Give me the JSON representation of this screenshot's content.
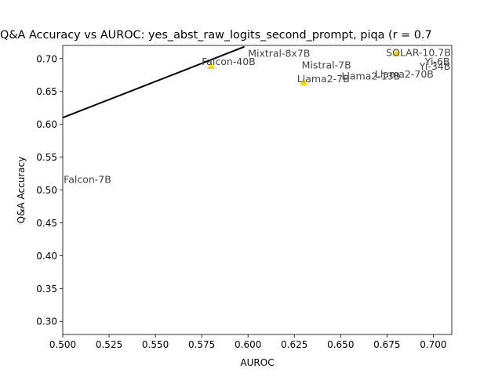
{
  "chart_data": {
    "type": "scatter",
    "title": "Q&A Accuracy vs AUROC: yes_abst_raw_logits_second_prompt, piqa (r = 0.7",
    "xlabel": "AUROC",
    "ylabel": "Q&A Accuracy",
    "xlim": [
      0.5,
      0.71
    ],
    "ylim": [
      0.28,
      0.72
    ],
    "x_ticks": [
      0.5,
      0.525,
      0.55,
      0.575,
      0.6,
      0.625,
      0.65,
      0.675,
      0.7
    ],
    "x_tick_labels": [
      "0.500",
      "0.525",
      "0.550",
      "0.575",
      "0.600",
      "0.625",
      "0.650",
      "0.675",
      "0.700"
    ],
    "y_ticks": [
      0.3,
      0.35,
      0.4,
      0.45,
      0.5,
      0.55,
      0.6,
      0.65,
      0.7
    ],
    "y_tick_labels": [
      "0.30",
      "0.35",
      "0.40",
      "0.45",
      "0.50",
      "0.55",
      "0.60",
      "0.65",
      "0.70"
    ],
    "grid": false,
    "marker_color": "#FFD700",
    "line_color": "#000000",
    "regression_line": {
      "x": [
        0.5,
        0.598
      ],
      "y": [
        0.61,
        0.718
      ]
    },
    "points": [
      {
        "label": "Falcon-40B",
        "x": 0.58,
        "y": 0.689,
        "marker": true
      },
      {
        "label": "Llama2-7B",
        "x": 0.63,
        "y": 0.664,
        "marker": true
      },
      {
        "label": "SOLAR-10.7B",
        "x": 0.68,
        "y": 0.708,
        "marker": true
      }
    ],
    "labels": [
      {
        "text": "Mixtral-8x7B",
        "x": 0.6,
        "y": 0.703
      },
      {
        "text": "Falcon-40B",
        "x": 0.575,
        "y": 0.69
      },
      {
        "text": "Mistral-7B",
        "x": 0.629,
        "y": 0.685
      },
      {
        "text": "Llama2-7B",
        "x": 0.6265,
        "y": 0.664
      },
      {
        "text": "Llama2-13B",
        "x": 0.6505,
        "y": 0.668
      },
      {
        "text": "SOLAR-10.7B",
        "x": 0.6745,
        "y": 0.704
      },
      {
        "text": "Yi-6B",
        "x": 0.6955,
        "y": 0.69
      },
      {
        "text": "Llama2-70B",
        "x": 0.6685,
        "y": 0.671
      },
      {
        "text": "Yi-34B",
        "x": 0.6925,
        "y": 0.683
      },
      {
        "text": "Falcon-7B",
        "x": 0.5005,
        "y": 0.511
      }
    ]
  }
}
